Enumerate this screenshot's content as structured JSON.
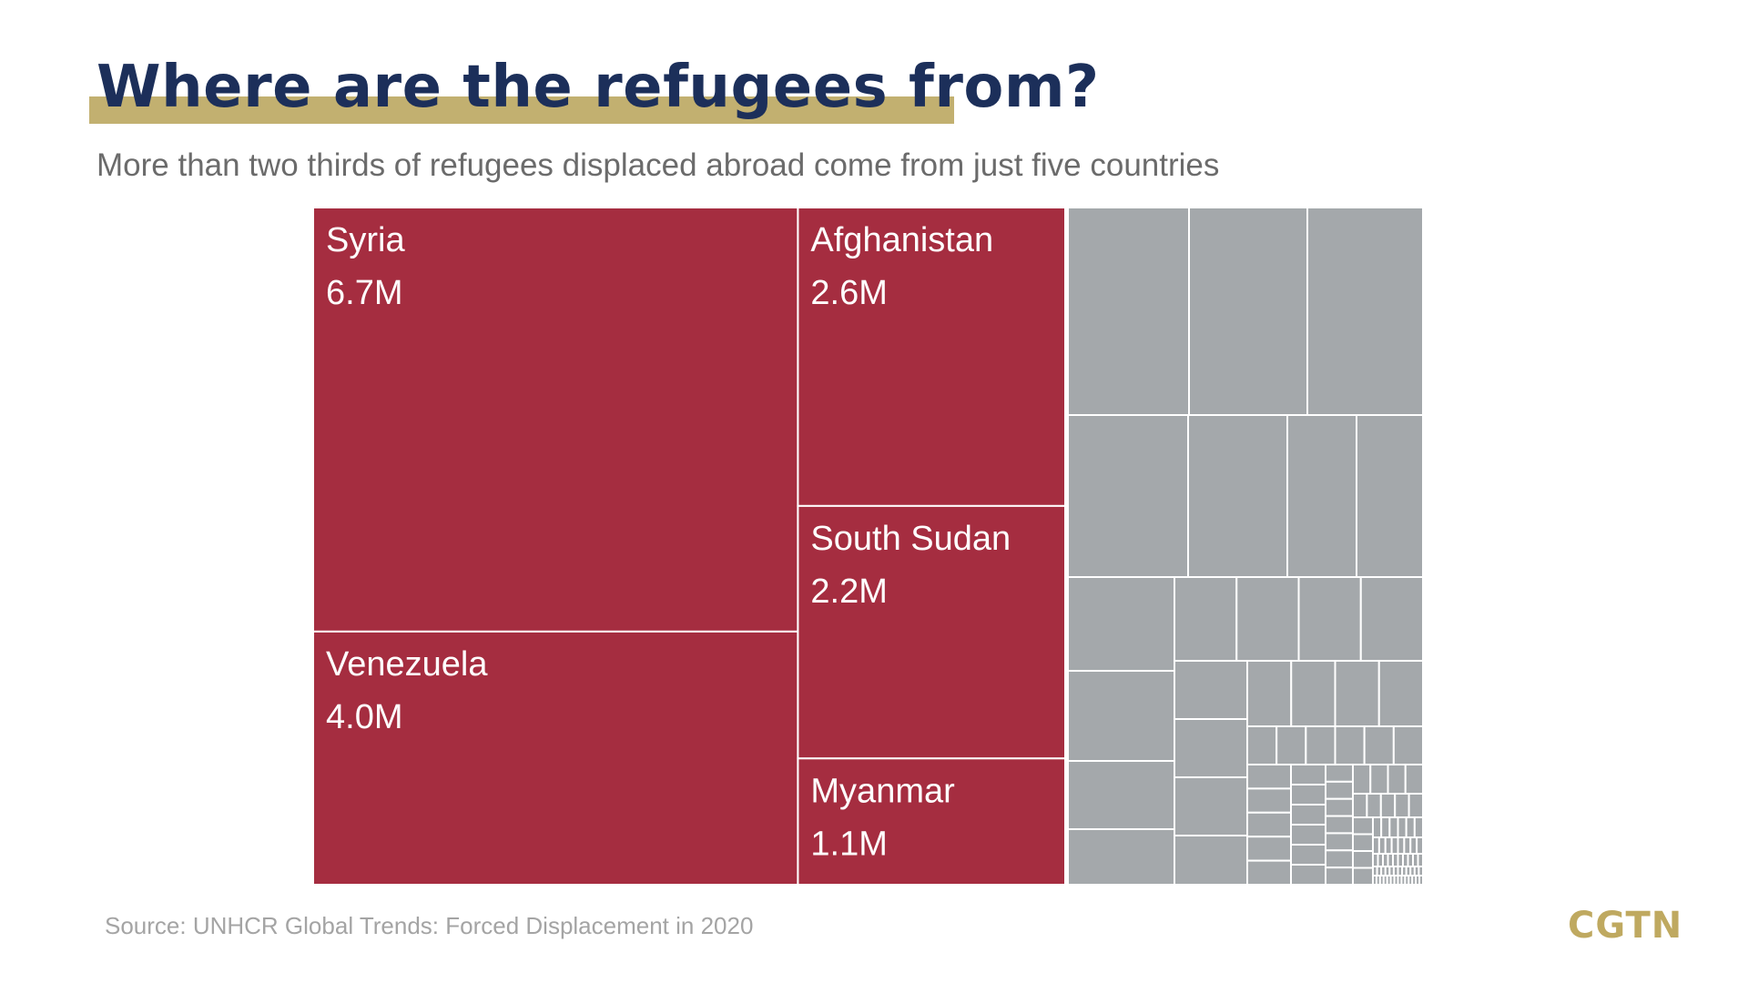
{
  "header": {
    "title": "Where are the refugees from?",
    "subtitle": "More than two thirds of refugees displaced abroad come from just five countries"
  },
  "footer": {
    "source": "Source: UNHCR Global Trends: Forced Displacement in 2020",
    "logo": "CGTN"
  },
  "colors": {
    "highlight": "#a52d40",
    "other": "#a4a8ab",
    "divider": "#ffffff",
    "title": "#1c2f5a",
    "title_underline": "#c2b070",
    "logo": "#bfa960"
  },
  "chart_data": {
    "type": "treemap",
    "title": "Where are the refugees from?",
    "subtitle": "More than two thirds of refugees displaced abroad come from just five countries",
    "unit": "M",
    "highlighted": [
      {
        "name": "Syria",
        "label": "6.7M",
        "value": 6.7
      },
      {
        "name": "Venezuela",
        "label": "4.0M",
        "value": 4.0
      },
      {
        "name": "Afghanistan",
        "label": "2.6M",
        "value": 2.6
      },
      {
        "name": "South Sudan",
        "label": "2.2M",
        "value": 2.2
      },
      {
        "name": "Myanmar",
        "label": "1.1M",
        "value": 1.1
      }
    ],
    "other_countries_count": 120,
    "source": "Source: UNHCR Global Trends: Forced Displacement in 2020"
  }
}
